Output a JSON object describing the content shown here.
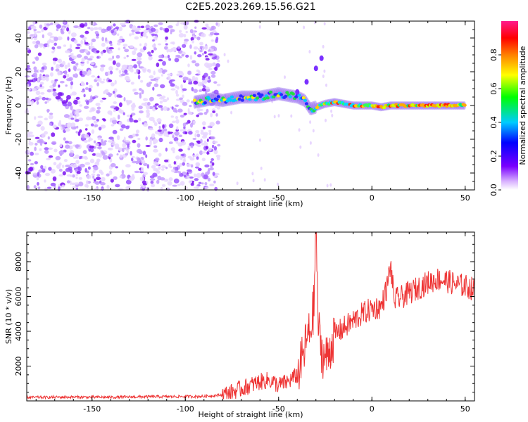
{
  "title": "C2E5.2023.269.15.56.G21",
  "chart_data": [
    {
      "type": "heatmap",
      "xlabel": "Height of straight line (km)",
      "ylabel": "Frequency (Hz)",
      "xlim": [
        -185,
        55
      ],
      "ylim": [
        -50,
        50
      ],
      "xticks": [
        -150,
        -100,
        -50,
        0,
        50
      ],
      "yticks": [
        -40,
        -20,
        0,
        20,
        40
      ],
      "colorbar": {
        "label": "Normalized spectral amplitude",
        "range": [
          0,
          1
        ],
        "ticks": [
          0.0,
          0.2,
          0.4,
          0.6,
          0.8
        ],
        "colormap": "rainbow (white-purple-blue-cyan-green-yellow-red-pink)"
      },
      "features": {
        "noise_region_x": [
          -185,
          -82
        ],
        "signal_track": [
          [
            -95,
            2
          ],
          [
            -85,
            4
          ],
          [
            -80,
            3
          ],
          [
            -75,
            4
          ],
          [
            -70,
            5
          ],
          [
            -60,
            5
          ],
          [
            -50,
            7
          ],
          [
            -45,
            6
          ],
          [
            -40,
            5
          ],
          [
            -36,
            3
          ],
          [
            -33,
            -2
          ],
          [
            -30,
            -1
          ],
          [
            -25,
            1
          ],
          [
            -20,
            2
          ],
          [
            -15,
            1
          ],
          [
            -10,
            0
          ],
          [
            0,
            0
          ],
          [
            5,
            -1
          ],
          [
            10,
            0
          ],
          [
            20,
            0
          ],
          [
            30,
            0
          ],
          [
            40,
            0
          ],
          [
            50,
            0
          ]
        ],
        "branch_track": [
          [
            -40,
            8
          ],
          [
            -35,
            14
          ],
          [
            -30,
            22
          ],
          [
            -27,
            28
          ]
        ]
      }
    },
    {
      "type": "line",
      "xlabel": "Height of straight line (km)",
      "ylabel": "SNR (10 * v/v)",
      "xlim": [
        -185,
        55
      ],
      "ylim": [
        0,
        9700
      ],
      "xticks": [
        -150,
        -100,
        -50,
        0,
        50
      ],
      "yticks": [
        2000,
        4000,
        6000,
        8000
      ],
      "color": "#ee3333",
      "series": [
        {
          "x": [
            -185,
            -160,
            -140,
            -120,
            -100,
            -90,
            -80,
            -75,
            -70,
            -65,
            -60,
            -55,
            -50,
            -45,
            -40,
            -37,
            -35,
            -33,
            -31,
            -30,
            -29,
            -28,
            -26,
            -24,
            -20,
            -15,
            -10,
            -5,
            0,
            5,
            8,
            10,
            12,
            15,
            20,
            25,
            30,
            35,
            40,
            45,
            50,
            55
          ],
          "y": [
            200,
            220,
            210,
            240,
            250,
            260,
            350,
            500,
            700,
            900,
            1100,
            1200,
            900,
            1100,
            1500,
            2500,
            3500,
            4000,
            5500,
            9700,
            5000,
            3500,
            2500,
            2500,
            3800,
            4200,
            4600,
            5000,
            5300,
            5400,
            6500,
            7800,
            5800,
            5900,
            6200,
            6500,
            6800,
            7000,
            6900,
            6700,
            6600,
            6400
          ]
        }
      ]
    }
  ]
}
